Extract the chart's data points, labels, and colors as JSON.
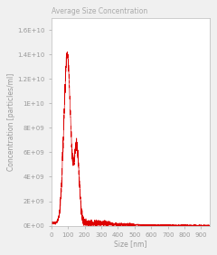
{
  "title": "Average Size Concentration",
  "xlabel": "Size [nm]",
  "ylabel": "Concentration [particles/ml]",
  "xlim": [
    0,
    950
  ],
  "ylim": [
    0,
    17000000000.0
  ],
  "yticks": [
    0,
    2000000000.0,
    4000000000.0,
    6000000000.0,
    8000000000.0,
    10000000000.0,
    12000000000.0,
    14000000000.0,
    16000000000.0
  ],
  "ytick_labels": [
    "0E+00",
    "2E+09",
    "4E+09",
    "6E+09",
    "8E+09",
    "1E+10",
    "1.2E+10",
    "1.4E+10",
    "1.6E+10"
  ],
  "xticks": [
    0,
    100,
    200,
    300,
    400,
    500,
    600,
    700,
    800,
    900
  ],
  "line_color": "#dd0000",
  "background_color": "#ffffff",
  "outer_background": "#f0f0f0",
  "title_color": "#aaaaaa",
  "axis_color": "#bbbbbb",
  "tick_color": "#999999",
  "title_fontsize": 5.5,
  "axis_label_fontsize": 5.5,
  "tick_fontsize": 5.0
}
